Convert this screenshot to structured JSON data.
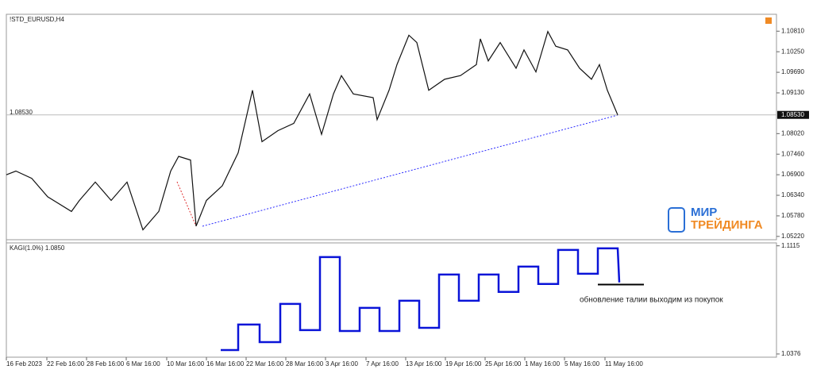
{
  "chart_data": [
    {
      "type": "line",
      "title": "!STD_EURUSD,H4",
      "color": "#111111",
      "x": [
        0,
        12,
        32,
        52,
        82,
        92,
        112,
        132,
        152,
        172,
        192,
        207,
        217,
        232,
        239,
        252,
        272,
        292,
        310,
        322,
        342,
        362,
        382,
        397,
        412,
        422,
        437,
        462,
        467,
        482,
        492,
        507,
        517,
        532,
        552,
        572,
        592,
        597,
        607,
        622,
        642,
        652,
        667,
        682,
        692,
        707,
        722,
        737,
        747,
        757,
        770
      ],
      "values": [
        1.069,
        1.07,
        1.068,
        1.063,
        1.059,
        1.062,
        1.067,
        1.062,
        1.067,
        1.054,
        1.059,
        1.07,
        1.074,
        1.073,
        1.055,
        1.062,
        1.066,
        1.075,
        1.092,
        1.078,
        1.081,
        1.083,
        1.091,
        1.08,
        1.091,
        1.096,
        1.091,
        1.09,
        1.084,
        1.092,
        1.099,
        1.107,
        1.105,
        1.092,
        1.095,
        1.096,
        1.099,
        1.106,
        1.1,
        1.105,
        1.098,
        1.103,
        1.097,
        1.108,
        1.104,
        1.103,
        1.098,
        1.095,
        1.099,
        1.092,
        1.0853
      ],
      "current": {
        "value": 1.0853,
        "label": "1.08530"
      },
      "xlim": [
        0,
        970
      ],
      "ylim": [
        1.0513,
        1.1127
      ],
      "yticks": [
        {
          "value": 1.1081,
          "label": "1.10810"
        },
        {
          "value": 1.1025,
          "label": "1.10250"
        },
        {
          "value": 1.0969,
          "label": "1.09690"
        },
        {
          "value": 1.0913,
          "label": "1.09130"
        },
        {
          "value": 1.0802,
          "label": "1.08020"
        },
        {
          "value": 1.0746,
          "label": "1.07460"
        },
        {
          "value": 1.069,
          "label": "1.06900"
        },
        {
          "value": 1.0634,
          "label": "1.06340"
        },
        {
          "value": 1.0578,
          "label": "1.05780"
        },
        {
          "value": 1.0522,
          "label": "1.05220"
        }
      ]
    },
    {
      "type": "kagi",
      "title": "KAGI(1.0%) 1.0850",
      "color": "#0a14d8",
      "x": [
        270,
        292,
        292,
        319,
        319,
        345,
        345,
        370,
        370,
        395,
        395,
        420,
        420,
        445,
        445,
        470,
        470,
        495,
        495,
        520,
        520,
        545,
        545,
        570,
        570,
        595,
        595,
        620,
        620,
        645,
        645,
        670,
        670,
        695,
        695,
        720,
        720,
        745,
        745,
        770,
        772
      ],
      "values": [
        1.0403,
        1.0403,
        1.0577,
        1.0577,
        1.0457,
        1.0457,
        1.0718,
        1.0718,
        1.0539,
        1.0539,
        1.1038,
        1.1038,
        1.0533,
        1.0533,
        1.0691,
        1.0691,
        1.0533,
        1.0533,
        1.074,
        1.074,
        1.0555,
        1.0555,
        1.0919,
        1.0919,
        1.074,
        1.074,
        1.0919,
        1.0919,
        1.08,
        1.08,
        1.0973,
        1.0973,
        1.0854,
        1.0854,
        1.1087,
        1.1087,
        1.0924,
        1.0924,
        1.1098,
        1.1098,
        1.0865
      ],
      "level": 1.085,
      "annotation": "обновление талии выходим из покупок",
      "xlim": [
        0,
        970
      ],
      "ylim": [
        1.0354,
        1.1135
      ],
      "yticks": [
        1.1115,
        1.0376
      ],
      "xticks": [
        {
          "value": 0,
          "label": "16 Feb 2023"
        },
        {
          "value": 51,
          "label": "22 Feb 16:00"
        },
        {
          "value": 101,
          "label": "28 Feb 16:00"
        },
        {
          "value": 151,
          "label": "6 Mar 16:00"
        },
        {
          "value": 202,
          "label": "10 Mar 16:00"
        },
        {
          "value": 252,
          "label": "16 Mar 16:00"
        },
        {
          "value": 302,
          "label": "22 Mar 16:00"
        },
        {
          "value": 352,
          "label": "28 Mar 16:00"
        },
        {
          "value": 402,
          "label": "3 Apr 16:00"
        },
        {
          "value": 453,
          "label": "7 Apr 16:00"
        },
        {
          "value": 503,
          "label": "13 Apr 16:00"
        },
        {
          "value": 553,
          "label": "19 Apr 16:00"
        },
        {
          "value": 603,
          "label": "25 Apr 16:00"
        },
        {
          "value": 653,
          "label": "1 May 16:00"
        },
        {
          "value": 703,
          "label": "5 May 16:00"
        },
        {
          "value": 754,
          "label": "11 May 16:00"
        }
      ]
    }
  ],
  "logo": {
    "line1": "МИР",
    "line2": "ТРЕЙДИНГА"
  }
}
